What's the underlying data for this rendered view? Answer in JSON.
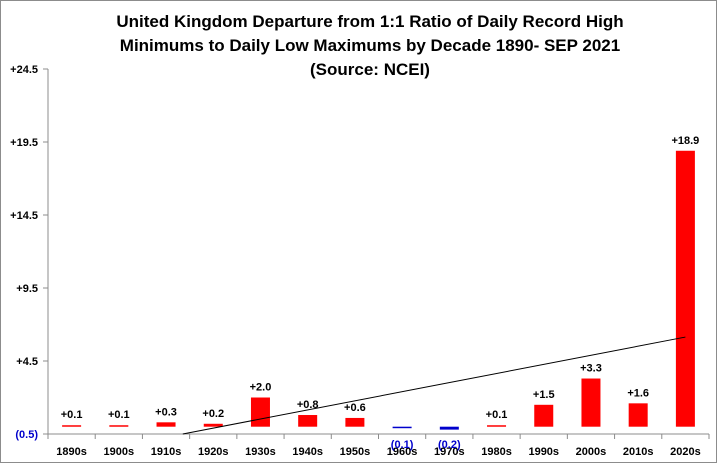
{
  "chart_data": {
    "type": "bar",
    "title_lines": [
      "United Kingdom Departure  from 1:1 Ratio of Daily Record High",
      "Minimums  to Daily Low Maximums  by Decade 1890- SEP 2021",
      "(Source: NCEI)"
    ],
    "categories": [
      "1890s",
      "1900s",
      "1910s",
      "1920s",
      "1930s",
      "1940s",
      "1950s",
      "1960s",
      "1970s",
      "1980s",
      "1990s",
      "2000s",
      "2010s",
      "2020s"
    ],
    "values": [
      0.1,
      0.1,
      0.3,
      0.2,
      2.0,
      0.8,
      0.6,
      -0.1,
      -0.2,
      0.1,
      1.5,
      3.3,
      1.6,
      18.9
    ],
    "data_labels": [
      "+0.1",
      "+0.1",
      "+0.3",
      "+0.2",
      "+2.0",
      "+0.8",
      "+0.6",
      "(0.1)",
      "(0.2)",
      "+0.1",
      "+1.5",
      "+3.3",
      "+1.6",
      "+18.9"
    ],
    "yticks": [
      -0.5,
      4.5,
      9.5,
      14.5,
      19.5,
      24.5
    ],
    "ytick_labels": [
      "(0.5)",
      "+4.5",
      "+9.5",
      "+14.5",
      "+19.5",
      "+24.5"
    ],
    "ylim": [
      -0.5,
      24.5
    ],
    "grid": false,
    "trendline": {
      "type": "linear"
    },
    "colors": {
      "positive": "#ff0000",
      "negative": "#0000cc",
      "negative_label": "#0000cc",
      "trendline": "#000000",
      "axis": "#8c8c8c"
    }
  }
}
